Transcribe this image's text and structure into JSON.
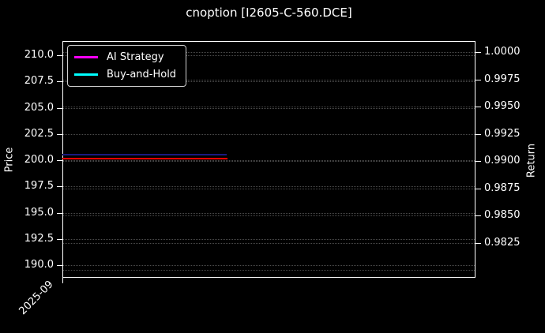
{
  "title": "cnoption [I2605-C-560.DCE]",
  "colors": {
    "background": "#000000",
    "foreground": "#ffffff",
    "grid": "#4d4d4d",
    "line_red": "#ff0000",
    "line_dark_blue": "#191980",
    "legend_ai": "#ff00ff",
    "legend_bh": "#00ffff"
  },
  "legend": {
    "entries": [
      {
        "label": "AI Strategy",
        "color": "#ff00ff"
      },
      {
        "label": "Buy-and-Hold",
        "color": "#00ffff"
      }
    ]
  },
  "chart_data": {
    "type": "line",
    "title": "cnoption [I2605-C-560.DCE]",
    "legend_position": "upper left",
    "grid": true,
    "x_axis": {
      "tick_labels": [
        "2025-09"
      ],
      "tick_rotation_deg": 45
    },
    "left_axis": {
      "label": "Price",
      "tick_labels": [
        "210.0",
        "207.5",
        "205.0",
        "202.5",
        "200.0",
        "197.5",
        "195.0",
        "192.5",
        "190.0"
      ],
      "tick_values": [
        210.0,
        207.5,
        205.0,
        202.5,
        200.0,
        197.5,
        195.0,
        192.5,
        190.0
      ],
      "range": [
        188.8,
        211.4
      ]
    },
    "right_axis": {
      "label": "Return",
      "tick_labels": [
        "1.0000",
        "0.9975",
        "0.9950",
        "0.9925",
        "0.9900",
        "0.9875",
        "0.9850",
        "0.9825"
      ],
      "tick_values": [
        1.0,
        0.9975,
        0.995,
        0.9925,
        0.99,
        0.9875,
        0.985,
        0.9825
      ],
      "unlabeled_grid_values": [
        0.98
      ],
      "range": [
        0.9793,
        1.001
      ]
    },
    "series": [
      {
        "name": "AI Strategy",
        "legend_color": "#ff00ff"
      },
      {
        "name": "Buy-and-Hold",
        "legend_color": "#00ffff"
      }
    ],
    "plotted_lines": [
      {
        "color": "#ff0000",
        "axis": "left",
        "shape": "flat",
        "price_value": 200.15,
        "return_value": 0.9902,
        "x_start_fraction": 0.0,
        "x_end_fraction": 0.4,
        "thickness_px": 2
      },
      {
        "color": "#191980",
        "axis": "left",
        "shape": "flat",
        "price_value": 200.5,
        "return_value": 0.9906,
        "x_start_fraction": 0.0,
        "x_end_fraction": 0.398,
        "thickness_px": 2
      }
    ]
  }
}
